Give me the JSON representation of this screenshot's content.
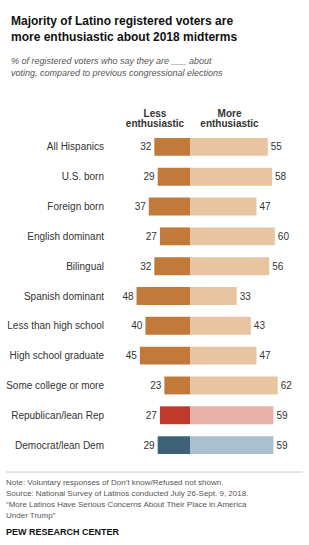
{
  "chart_data": {
    "type": "bar",
    "orientation": "horizontal",
    "title": "Majority of Latino registered voters are\nmore enthusiastic about 2018 midterms",
    "subtitle": "% of registered voters who say they are ___ about\nvoting, compared to previous congressional elections",
    "categories": [
      "All Hispanics",
      "U.S. born",
      "Foreign born",
      "English dominant",
      "Bilingual",
      "Spanish dominant",
      "Less than high school",
      "High school graduate",
      "Some college or more",
      "Republican/lean Rep",
      "Democrat/lean Dem"
    ],
    "series": [
      {
        "name": "Less\nenthusiastic",
        "values": [
          32,
          29,
          37,
          27,
          32,
          48,
          40,
          45,
          23,
          27,
          29
        ],
        "colors": [
          "#c17a3a",
          "#c17a3a",
          "#c17a3a",
          "#c17a3a",
          "#c17a3a",
          "#c17a3a",
          "#c17a3a",
          "#c17a3a",
          "#c17a3a",
          "#c0392b",
          "#3d6278"
        ]
      },
      {
        "name": "More\nenthusiastic",
        "values": [
          55,
          58,
          47,
          60,
          56,
          33,
          43,
          47,
          62,
          59,
          59
        ],
        "colors": [
          "#e8c4a0",
          "#e8c4a0",
          "#e8c4a0",
          "#e8c4a0",
          "#e8c4a0",
          "#e8c4a0",
          "#e8c4a0",
          "#e8c4a0",
          "#e8c4a0",
          "#e8b0a8",
          "#a8c0d0"
        ]
      }
    ],
    "xlim": [
      0,
      70
    ],
    "grid": false,
    "tick_labels": "y",
    "data_labels": true,
    "annotations": [
      "Note: Voluntary responses of Don’t know/Refused not shown.\nSource: National Survey of Latinos conducted July 26-Sept. 9, 2018.\n“More Latinos Have Serious Concerns About Their Place in America\nUnder Trump”",
      "PEW RESEARCH CENTER"
    ]
  }
}
